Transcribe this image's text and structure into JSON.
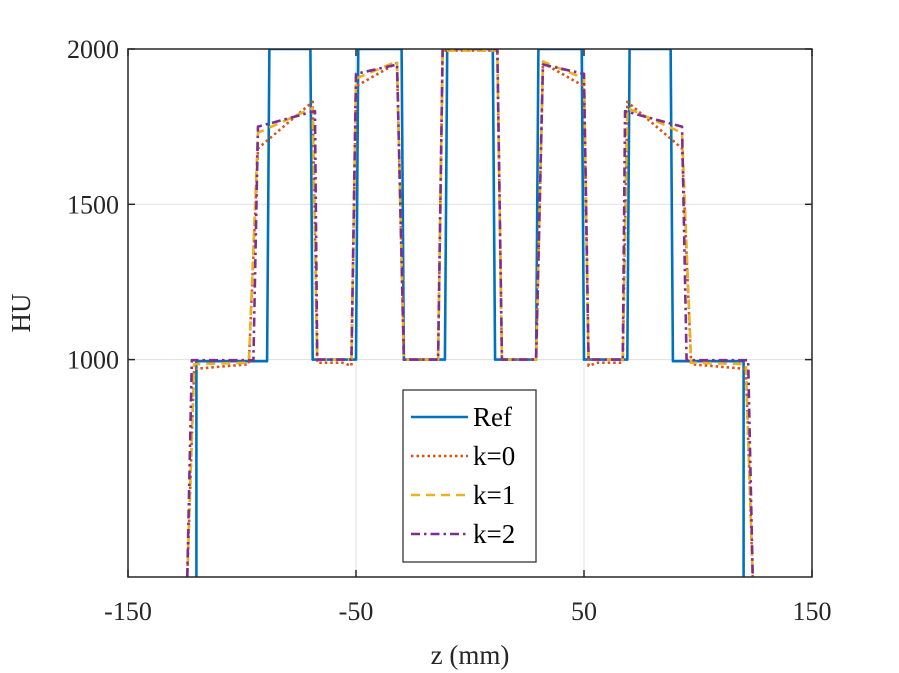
{
  "chart_data": {
    "type": "line",
    "xlabel": "z (mm)",
    "ylabel": "HU",
    "xlim": [
      -150,
      150
    ],
    "ylim": [
      300,
      2000
    ],
    "xticks": [
      -150,
      -50,
      50,
      150
    ],
    "xtick_labels": [
      "-150",
      "-50",
      "50",
      "150"
    ],
    "yticks": [
      1000,
      1500,
      2000
    ],
    "ytick_labels": [
      "1000",
      "1500",
      "2000"
    ],
    "grid": true,
    "legend_position": "bottom-center",
    "series": [
      {
        "name": "Ref",
        "color": "#0072BD",
        "dash": "solid",
        "points": [
          [
            -120,
            300
          ],
          [
            -120,
            995
          ],
          [
            -89,
            995
          ],
          [
            -88,
            2000
          ],
          [
            -70,
            2000
          ],
          [
            -69,
            1000
          ],
          [
            -55,
            1000
          ],
          [
            -54,
            1000
          ],
          [
            -50,
            1000
          ],
          [
            -49,
            2000
          ],
          [
            -30,
            2000
          ],
          [
            -29,
            1000
          ],
          [
            -11,
            1000
          ],
          [
            -10,
            2000
          ],
          [
            10,
            2000
          ],
          [
            11,
            1000
          ],
          [
            29,
            1000
          ],
          [
            30,
            2000
          ],
          [
            49,
            2000
          ],
          [
            50,
            1000
          ],
          [
            55,
            1000
          ],
          [
            69,
            1000
          ],
          [
            70,
            2000
          ],
          [
            88,
            2000
          ],
          [
            89,
            995
          ],
          [
            120,
            995
          ],
          [
            120,
            300
          ]
        ]
      },
      {
        "name": "k=0",
        "color": "#D95319",
        "dash": "dotted",
        "points": [
          [
            -124,
            300
          ],
          [
            -121,
            970
          ],
          [
            -97,
            985
          ],
          [
            -93,
            1680
          ],
          [
            -69,
            1830
          ],
          [
            -67,
            990
          ],
          [
            -56,
            990
          ],
          [
            -52,
            980
          ],
          [
            -50,
            1880
          ],
          [
            -32,
            1955
          ],
          [
            -29,
            1000
          ],
          [
            -14,
            1000
          ],
          [
            -12,
            1995
          ],
          [
            12,
            1995
          ],
          [
            14,
            1000
          ],
          [
            29,
            1000
          ],
          [
            32,
            1955
          ],
          [
            50,
            1880
          ],
          [
            52,
            980
          ],
          [
            56,
            990
          ],
          [
            67,
            990
          ],
          [
            69,
            1830
          ],
          [
            93,
            1680
          ],
          [
            97,
            985
          ],
          [
            121,
            970
          ],
          [
            124,
            300
          ]
        ]
      },
      {
        "name": "k=1",
        "color": "#EDB120",
        "dash": "dashed",
        "points": [
          [
            -124,
            300
          ],
          [
            -121,
            985
          ],
          [
            -97,
            990
          ],
          [
            -93,
            1730
          ],
          [
            -69,
            1810
          ],
          [
            -67,
            1000
          ],
          [
            -52,
            1000
          ],
          [
            -50,
            1905
          ],
          [
            -32,
            1960
          ],
          [
            -29,
            1000
          ],
          [
            -14,
            1000
          ],
          [
            -12,
            1995
          ],
          [
            12,
            1995
          ],
          [
            14,
            1000
          ],
          [
            29,
            1000
          ],
          [
            32,
            1960
          ],
          [
            50,
            1905
          ],
          [
            52,
            1000
          ],
          [
            67,
            1000
          ],
          [
            69,
            1810
          ],
          [
            93,
            1730
          ],
          [
            97,
            990
          ],
          [
            121,
            985
          ],
          [
            124,
            300
          ]
        ]
      },
      {
        "name": "k=2",
        "color": "#7E2F8E",
        "dash": "dashdot",
        "points": [
          [
            -124,
            300
          ],
          [
            -122,
            998
          ],
          [
            -95,
            998
          ],
          [
            -93,
            1750
          ],
          [
            -68,
            1800
          ],
          [
            -67,
            1000
          ],
          [
            -54,
            1000
          ],
          [
            -52,
            1000
          ],
          [
            -50,
            1920
          ],
          [
            -32,
            1950
          ],
          [
            -29,
            1000
          ],
          [
            -14,
            1000
          ],
          [
            -12,
            2000
          ],
          [
            12,
            2000
          ],
          [
            14,
            1000
          ],
          [
            29,
            1000
          ],
          [
            32,
            1950
          ],
          [
            50,
            1920
          ],
          [
            52,
            1000
          ],
          [
            54,
            1000
          ],
          [
            67,
            1000
          ],
          [
            68,
            1800
          ],
          [
            93,
            1750
          ],
          [
            95,
            998
          ],
          [
            122,
            998
          ],
          [
            124,
            300
          ]
        ]
      }
    ]
  }
}
